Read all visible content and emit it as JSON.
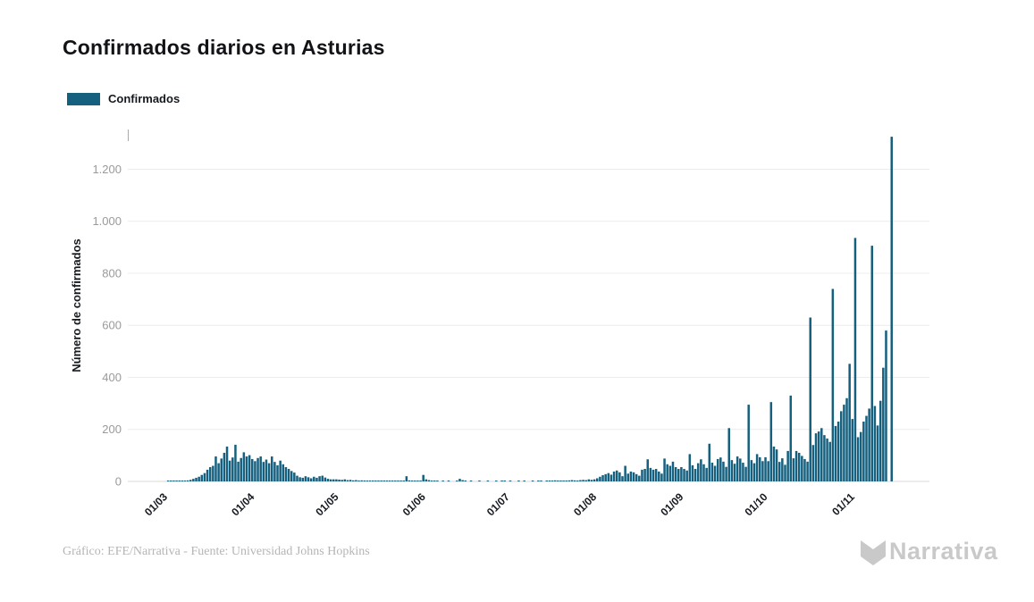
{
  "header": {
    "title": "Confirmados diarios en Asturias"
  },
  "legend": {
    "items": [
      {
        "label": "Confirmados",
        "color": "#15607f"
      }
    ]
  },
  "footer": {
    "credit": "Gráfico: EFE/Narrativa - Fuente: Universidad Johns Hopkins",
    "logo_text": "Narrativa"
  },
  "colors": {
    "bar": "#15607f",
    "grid": "#ececec",
    "baseline": "#d9d9d9",
    "ytick_text": "#9a9a9a",
    "xtick_text": "#15191e",
    "credit_text": "#b5b5b5",
    "logo": "#c9c9c9"
  },
  "chart_data": {
    "type": "bar",
    "title": "Confirmados diarios en Asturias",
    "xlabel": "",
    "ylabel": "Número de confirmados",
    "legend_entries": [
      "Confirmados"
    ],
    "bar_color": "#15607f",
    "grid": true,
    "legend_position": "top-left",
    "ylim": [
      0,
      1360
    ],
    "yticks": [
      {
        "value": 0,
        "label": "0"
      },
      {
        "value": 200,
        "label": "200"
      },
      {
        "value": 400,
        "label": "400"
      },
      {
        "value": 600,
        "label": "600"
      },
      {
        "value": 800,
        "label": "800"
      },
      {
        "value": 1000,
        "label": "1.000"
      },
      {
        "value": 1200,
        "label": "1.200"
      }
    ],
    "xticks": [
      {
        "label": "01/03",
        "day_index": 0
      },
      {
        "label": "01/04",
        "day_index": 31
      },
      {
        "label": "01/05",
        "day_index": 61
      },
      {
        "label": "01/06",
        "day_index": 92
      },
      {
        "label": "01/07",
        "day_index": 122
      },
      {
        "label": "01/08",
        "day_index": 153
      },
      {
        "label": "01/09",
        "day_index": 184
      },
      {
        "label": "01/10",
        "day_index": 214
      },
      {
        "label": "01/11",
        "day_index": 245
      }
    ],
    "x_note": "one bar per day starting 01/03 (index 0) through mid November",
    "values": [
      0,
      1,
      1,
      2,
      1,
      2,
      3,
      3,
      4,
      6,
      10,
      14,
      18,
      25,
      32,
      45,
      55,
      60,
      96,
      70,
      88,
      110,
      134,
      80,
      92,
      141,
      76,
      90,
      112,
      96,
      101,
      86,
      78,
      90,
      96,
      75,
      84,
      70,
      96,
      75,
      62,
      80,
      66,
      55,
      48,
      40,
      34,
      22,
      16,
      14,
      20,
      16,
      12,
      18,
      14,
      20,
      22,
      15,
      10,
      8,
      8,
      8,
      7,
      6,
      8,
      5,
      6,
      4,
      5,
      3,
      4,
      3,
      2,
      3,
      2,
      2,
      3,
      2,
      1,
      2,
      3,
      2,
      1,
      2,
      2,
      2,
      20,
      4,
      2,
      1,
      2,
      1,
      25,
      8,
      5,
      2,
      1,
      1,
      0,
      1,
      0,
      1,
      0,
      0,
      2,
      10,
      5,
      1,
      0,
      1,
      0,
      0,
      1,
      0,
      0,
      1,
      0,
      0,
      1,
      0,
      1,
      1,
      0,
      1,
      0,
      0,
      1,
      0,
      1,
      0,
      0,
      1,
      0,
      1,
      1,
      0,
      1,
      2,
      1,
      4,
      3,
      2,
      3,
      2,
      4,
      5,
      4,
      3,
      5,
      6,
      5,
      8,
      6,
      8,
      12,
      18,
      24,
      28,
      32,
      26,
      38,
      42,
      35,
      20,
      60,
      30,
      38,
      35,
      28,
      22,
      45,
      48,
      85,
      52,
      45,
      48,
      38,
      30,
      88,
      66,
      60,
      76,
      55,
      48,
      55,
      48,
      42,
      105,
      62,
      48,
      70,
      85,
      66,
      52,
      145,
      72,
      60,
      86,
      92,
      76,
      56,
      205,
      82,
      68,
      96,
      88,
      72,
      56,
      295,
      82,
      70,
      105,
      93,
      78,
      93,
      78,
      305,
      134,
      123,
      75,
      89,
      64,
      117,
      330,
      89,
      117,
      110,
      98,
      86,
      76,
      630,
      140,
      185,
      192,
      205,
      178,
      165,
      152,
      740,
      213,
      230,
      270,
      295,
      320,
      452,
      240,
      936,
      170,
      190,
      230,
      252,
      280,
      906,
      290,
      215,
      310,
      437,
      580,
      0,
      1325
    ]
  }
}
